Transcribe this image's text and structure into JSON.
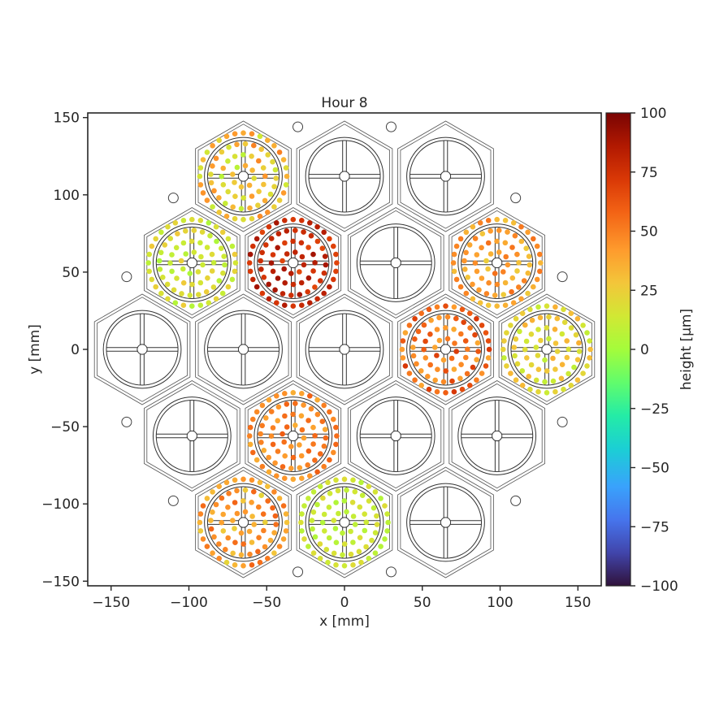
{
  "chart_data": {
    "type": "scatter",
    "title": "Hour 8",
    "xlabel": "x [mm]",
    "ylabel": "y [mm]",
    "xlim": [
      -165,
      165
    ],
    "ylim": [
      -153,
      153
    ],
    "xticks": [
      -150,
      -100,
      -50,
      0,
      50,
      100,
      150
    ],
    "yticks": [
      -150,
      -100,
      -50,
      0,
      50,
      100,
      150
    ],
    "colorbar": {
      "label": "height [μm]",
      "vmin": -100,
      "vmax": 100,
      "ticks": [
        100,
        75,
        50,
        25,
        0,
        -25,
        -50,
        -75,
        -100
      ],
      "colormap": "turbo"
    },
    "segments": [
      {
        "x": -65,
        "y": 112,
        "measured": true,
        "mean_height": 28,
        "spread": 22
      },
      {
        "x": 0,
        "y": 112,
        "measured": false
      },
      {
        "x": 65,
        "y": 112,
        "measured": false
      },
      {
        "x": -98,
        "y": 56,
        "measured": true,
        "mean_height": 15,
        "spread": 12
      },
      {
        "x": -33,
        "y": 56,
        "measured": true,
        "mean_height": 78,
        "spread": 12
      },
      {
        "x": 33,
        "y": 56,
        "measured": false
      },
      {
        "x": 98,
        "y": 56,
        "measured": true,
        "mean_height": 40,
        "spread": 15
      },
      {
        "x": -130,
        "y": 0,
        "measured": false
      },
      {
        "x": -65,
        "y": 0,
        "measured": false
      },
      {
        "x": 0,
        "y": 0,
        "measured": false
      },
      {
        "x": 65,
        "y": 0,
        "measured": true,
        "mean_height": 55,
        "spread": 18
      },
      {
        "x": 130,
        "y": 0,
        "measured": true,
        "mean_height": 22,
        "spread": 14
      },
      {
        "x": -98,
        "y": -56,
        "measured": false
      },
      {
        "x": -33,
        "y": -56,
        "measured": true,
        "mean_height": 48,
        "spread": 12
      },
      {
        "x": 33,
        "y": -56,
        "measured": false
      },
      {
        "x": 98,
        "y": -56,
        "measured": false
      },
      {
        "x": -65,
        "y": -112,
        "measured": true,
        "mean_height": 40,
        "spread": 18
      },
      {
        "x": 0,
        "y": -112,
        "measured": true,
        "mean_height": 12,
        "spread": 8
      },
      {
        "x": 65,
        "y": -112,
        "measured": false
      }
    ],
    "fiducials": [
      {
        "x": -30,
        "y": 144
      },
      {
        "x": 30,
        "y": 144
      },
      {
        "x": -110,
        "y": 98
      },
      {
        "x": 110,
        "y": 98
      },
      {
        "x": -140,
        "y": 47
      },
      {
        "x": 140,
        "y": 47
      },
      {
        "x": -140,
        "y": -47
      },
      {
        "x": 140,
        "y": -47
      },
      {
        "x": -110,
        "y": -98
      },
      {
        "x": 110,
        "y": -98
      },
      {
        "x": -30,
        "y": -144
      },
      {
        "x": 30,
        "y": -144
      }
    ]
  }
}
